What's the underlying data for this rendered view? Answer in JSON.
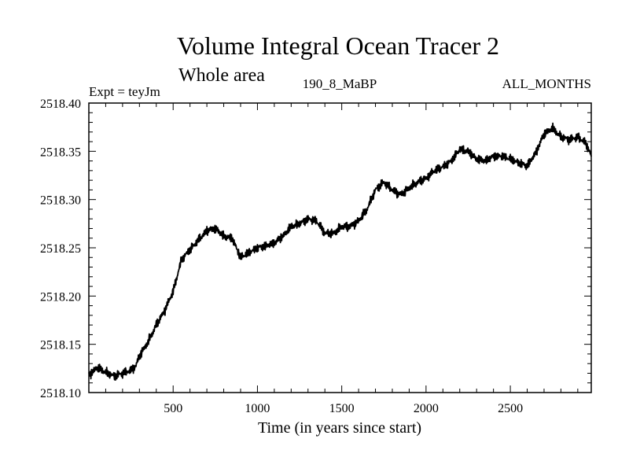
{
  "chart_data": {
    "type": "line",
    "title": "Volume Integral Ocean Tracer 2",
    "subtitle": "Whole area",
    "annotations": {
      "left": "Expt = teyJm",
      "center": "190_8_MaBP",
      "right": "ALL_MONTHS"
    },
    "xlabel": "Time (in years since start)",
    "ylabel": "",
    "xlim": [
      0,
      2980
    ],
    "ylim": [
      2518.1,
      2518.4
    ],
    "x_ticks": [
      500,
      1000,
      1500,
      2000,
      2500
    ],
    "y_ticks": [
      2518.1,
      2518.15,
      2518.2,
      2518.25,
      2518.3,
      2518.35,
      2518.4
    ],
    "grid": false,
    "series": [
      {
        "name": "Ocean Tracer 2",
        "x": [
          0,
          50,
          100,
          150,
          200,
          250,
          280,
          300,
          350,
          400,
          450,
          500,
          550,
          600,
          650,
          700,
          750,
          800,
          850,
          900,
          950,
          1000,
          1050,
          1100,
          1150,
          1200,
          1250,
          1300,
          1350,
          1400,
          1450,
          1500,
          1550,
          1600,
          1650,
          1700,
          1750,
          1800,
          1850,
          1900,
          1950,
          2000,
          2050,
          2100,
          2150,
          2200,
          2250,
          2300,
          2350,
          2400,
          2450,
          2500,
          2550,
          2600,
          2650,
          2700,
          2750,
          2800,
          2850,
          2900,
          2950,
          2980
        ],
        "values": [
          2518.118,
          2518.126,
          2518.121,
          2518.117,
          2518.12,
          2518.123,
          2518.128,
          2518.138,
          2518.152,
          2518.17,
          2518.185,
          2518.205,
          2518.238,
          2518.248,
          2518.258,
          2518.268,
          2518.27,
          2518.262,
          2518.26,
          2518.24,
          2518.245,
          2518.25,
          2518.252,
          2518.255,
          2518.262,
          2518.272,
          2518.275,
          2518.28,
          2518.278,
          2518.265,
          2518.265,
          2518.272,
          2518.272,
          2518.278,
          2518.29,
          2518.31,
          2518.318,
          2518.31,
          2518.305,
          2518.312,
          2518.318,
          2518.322,
          2518.33,
          2518.334,
          2518.34,
          2518.352,
          2518.35,
          2518.342,
          2518.34,
          2518.345,
          2518.345,
          2518.342,
          2518.338,
          2518.335,
          2518.348,
          2518.368,
          2518.374,
          2518.365,
          2518.362,
          2518.365,
          2518.358,
          2518.345
        ]
      }
    ]
  }
}
